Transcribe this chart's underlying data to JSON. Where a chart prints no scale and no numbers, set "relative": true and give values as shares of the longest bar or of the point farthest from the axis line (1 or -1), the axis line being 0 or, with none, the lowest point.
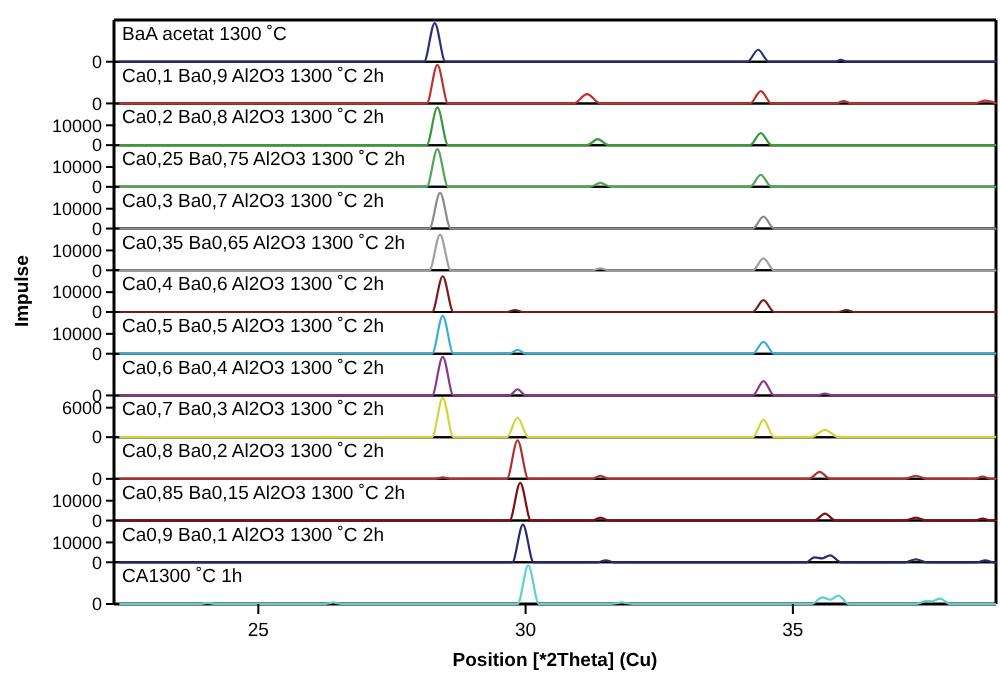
{
  "chart_data": [
    {
      "type": "line",
      "title": "BaA acetat 1300 ˚C",
      "relative": true,
      "annotations": [
        "0"
      ],
      "xlim": [
        22.3,
        38.8
      ],
      "tick_labels": "y",
      "series": [
        {
          "color": "#2b2f7a",
          "x": [
            22.4,
            28.1,
            28.3,
            28.5,
            34.15,
            34.35,
            34.55,
            35.8,
            35.9,
            36.0,
            38.8
          ],
          "values": [
            0,
            0,
            1,
            0,
            0,
            0.31,
            0,
            0,
            0.05,
            0,
            0
          ]
        }
      ]
    },
    {
      "type": "line",
      "title": "Ca0,1 Ba0,9 Al2O3 1300 ˚C 2h",
      "relative": true,
      "annotations": [
        "0"
      ],
      "xlim": [
        22.3,
        38.8
      ],
      "tick_labels": "y",
      "series": [
        {
          "color": "#c0302f",
          "x": [
            22.4,
            28.15,
            28.35,
            28.55,
            30.9,
            31.15,
            31.4,
            34.2,
            34.4,
            34.6,
            35.8,
            35.95,
            36.1,
            38.4,
            38.6,
            38.8
          ],
          "values": [
            0,
            0,
            1,
            0,
            0,
            0.24,
            0,
            0,
            0.32,
            0,
            0,
            0.06,
            0,
            0,
            0.07,
            0
          ]
        }
      ]
    },
    {
      "type": "line",
      "title": "Ca0,2 Ba0,8 Al2O3 1300 ˚C 2h",
      "xlim": [
        22.3,
        38.8
      ],
      "ylim": [
        0,
        21000
      ],
      "yticks": [
        0,
        10000
      ],
      "tick_labels": "y",
      "series": [
        {
          "color": "#3a9a3a",
          "x": [
            22.4,
            28.15,
            28.35,
            28.55,
            31.15,
            31.35,
            31.55,
            34.2,
            34.4,
            34.6,
            38.8
          ],
          "values": [
            0,
            0,
            19000,
            0,
            0,
            3000,
            0,
            0,
            6000,
            0,
            0
          ]
        }
      ]
    },
    {
      "type": "line",
      "title": "Ca0,25 Ba0,75 Al2O3 1300 ˚C 2h",
      "xlim": [
        22.3,
        38.8
      ],
      "ylim": [
        0,
        21000
      ],
      "yticks": [
        0,
        10000
      ],
      "tick_labels": "y",
      "series": [
        {
          "color": "#52a852",
          "x": [
            22.4,
            28.15,
            28.35,
            28.55,
            31.2,
            31.4,
            31.6,
            34.2,
            34.4,
            34.6,
            38.8
          ],
          "values": [
            0,
            0,
            19000,
            0,
            0,
            2000,
            0,
            0,
            6000,
            0,
            0
          ]
        }
      ]
    },
    {
      "type": "line",
      "title": "Ca0,3 Ba0,7 Al2O3 1300 ˚C 2h",
      "xlim": [
        22.3,
        38.8
      ],
      "ylim": [
        0,
        21000
      ],
      "yticks": [
        0,
        10000
      ],
      "tick_labels": "y",
      "series": [
        {
          "color": "#8c8c8c",
          "x": [
            22.4,
            28.2,
            28.4,
            28.6,
            34.25,
            34.45,
            34.65,
            38.8
          ],
          "values": [
            0,
            0,
            18000,
            0,
            0,
            6000,
            0,
            0
          ]
        }
      ]
    },
    {
      "type": "line",
      "title": "Ca0,35 Ba0,65 Al2O3 1300 ˚C 2h",
      "xlim": [
        22.3,
        38.8
      ],
      "ylim": [
        0,
        21000
      ],
      "yticks": [
        0,
        10000
      ],
      "tick_labels": "y",
      "series": [
        {
          "color": "#a0a0a0",
          "x": [
            22.4,
            28.2,
            28.4,
            28.6,
            31.25,
            31.4,
            31.55,
            34.25,
            34.45,
            34.65,
            38.8
          ],
          "values": [
            0,
            0,
            18000,
            0,
            0,
            1000,
            0,
            0,
            6000,
            0,
            0
          ]
        }
      ]
    },
    {
      "type": "line",
      "title": "Ca0,4 Ba0,6 Al2O3 1300 ˚C 2h",
      "ylabel": "Impulse",
      "xlim": [
        22.3,
        38.8
      ],
      "ylim": [
        0,
        21000
      ],
      "yticks": [
        0,
        10000
      ],
      "tick_labels": "y",
      "series": [
        {
          "color": "#7a1a1a",
          "x": [
            22.4,
            28.25,
            28.45,
            28.65,
            29.65,
            29.8,
            29.95,
            34.25,
            34.45,
            34.65,
            35.85,
            36.0,
            36.15,
            38.8
          ],
          "values": [
            0,
            0,
            18000,
            0,
            0,
            1000,
            0,
            0,
            6000,
            0,
            0,
            1000,
            0,
            0
          ]
        }
      ]
    },
    {
      "type": "line",
      "title": "Ca0,5 Ba0,5 Al2O3 1300 ˚C 2h",
      "xlim": [
        22.3,
        38.8
      ],
      "ylim": [
        0,
        21000
      ],
      "yticks": [
        0,
        10000
      ],
      "tick_labels": "y",
      "series": [
        {
          "color": "#3ab0d0",
          "x": [
            22.4,
            28.25,
            28.45,
            28.65,
            29.7,
            29.85,
            30.0,
            34.25,
            34.45,
            34.65,
            38.8
          ],
          "values": [
            0,
            0,
            19000,
            0,
            0,
            2000,
            0,
            0,
            6000,
            0,
            0
          ]
        }
      ]
    },
    {
      "type": "line",
      "title": "Ca0,6 Ba0,4 Al2O3 1300 ˚C 2h",
      "relative": true,
      "annotations": [
        "0"
      ],
      "xlim": [
        22.3,
        38.8
      ],
      "tick_labels": "y",
      "series": [
        {
          "color": "#8a3a8a",
          "x": [
            22.4,
            28.25,
            28.45,
            28.65,
            29.7,
            29.85,
            30.0,
            34.25,
            34.45,
            34.65,
            35.45,
            35.6,
            35.75,
            38.8
          ],
          "values": [
            0,
            0,
            1,
            0,
            0,
            0.16,
            0,
            0,
            0.37,
            0,
            0,
            0.05,
            0,
            0
          ]
        }
      ]
    },
    {
      "type": "line",
      "title": "Ca0,7 Ba0,3 Al2O3 1300 ˚C 2h",
      "xlim": [
        22.3,
        38.8
      ],
      "ylim": [
        0,
        8500
      ],
      "yticks": [
        0,
        6000
      ],
      "tick_labels": "y",
      "series": [
        {
          "color": "#d4d43a",
          "x": [
            22.4,
            28.25,
            28.45,
            28.65,
            29.65,
            29.85,
            30.05,
            34.25,
            34.45,
            34.65,
            35.35,
            35.6,
            35.85,
            38.8
          ],
          "values": [
            0,
            0,
            8000,
            0,
            0,
            4000,
            0,
            0,
            3500,
            0,
            0,
            1500,
            0,
            0
          ]
        }
      ]
    },
    {
      "type": "line",
      "title": "Ca0,8 Ba0,2 Al2O3 1300 ˚C 2h",
      "relative": true,
      "annotations": [
        "0"
      ],
      "xlim": [
        22.3,
        38.8
      ],
      "tick_labels": "y",
      "series": [
        {
          "color": "#b03030",
          "x": [
            22.4,
            28.3,
            28.45,
            28.6,
            29.65,
            29.85,
            30.05,
            31.25,
            31.4,
            31.55,
            35.3,
            35.5,
            35.7,
            37.1,
            37.3,
            37.5,
            38.4,
            38.55,
            38.7,
            38.8
          ],
          "values": [
            0,
            0,
            0.04,
            0,
            0,
            1,
            0,
            0,
            0.08,
            0,
            0,
            0.18,
            0,
            0,
            0.08,
            0,
            0,
            0.06,
            0,
            0
          ]
        }
      ]
    },
    {
      "type": "line",
      "title": "Ca0,85 Ba0,15 Al2O3 1300 ˚C 2h",
      "xlim": [
        22.3,
        38.8
      ],
      "ylim": [
        0,
        21000
      ],
      "yticks": [
        0,
        10000
      ],
      "tick_labels": "y",
      "series": [
        {
          "color": "#801010",
          "x": [
            22.4,
            29.7,
            29.9,
            30.1,
            31.25,
            31.4,
            31.55,
            35.4,
            35.6,
            35.8,
            37.1,
            37.3,
            37.5,
            38.4,
            38.55,
            38.7,
            38.8
          ],
          "values": [
            0,
            0,
            19000,
            0,
            0,
            1500,
            0,
            0,
            3500,
            0,
            0,
            1500,
            0,
            0,
            1000,
            0,
            0
          ]
        }
      ]
    },
    {
      "type": "line",
      "title": "Ca0,9 Ba0,1 Al2O3 1300 ˚C 2h",
      "xlim": [
        22.3,
        38.8
      ],
      "ylim": [
        0,
        21000
      ],
      "yticks": [
        0,
        10000
      ],
      "tick_labels": "y",
      "series": [
        {
          "color": "#2a2a70",
          "x": [
            22.4,
            29.75,
            29.95,
            30.15,
            31.35,
            31.5,
            31.65,
            35.25,
            35.4,
            35.55,
            35.7,
            35.9,
            37.1,
            37.3,
            37.5,
            38.45,
            38.6,
            38.75,
            38.8
          ],
          "values": [
            0,
            0,
            19000,
            0,
            0,
            1000,
            0,
            0,
            2500,
            2000,
            3500,
            0,
            0,
            1500,
            0,
            0,
            1000,
            0,
            0
          ]
        }
      ]
    },
    {
      "type": "line",
      "title": "CA1300 ˚C 1h",
      "relative": true,
      "annotations": [
        "0"
      ],
      "xlabel": "Position [*2Theta] (Cu)",
      "xlim": [
        22.3,
        38.8
      ],
      "xticks": [
        25,
        30,
        35
      ],
      "series": [
        {
          "color": "#5ad0d0",
          "x": [
            22.4,
            23.9,
            24.05,
            24.2,
            26.25,
            26.4,
            26.55,
            29.85,
            30.05,
            30.25,
            31.6,
            31.8,
            32.0,
            35.35,
            35.55,
            35.7,
            35.85,
            36.05,
            37.3,
            37.5,
            37.6,
            37.75,
            37.95,
            38.8
          ],
          "values": [
            0,
            0,
            0.03,
            0,
            0,
            0.04,
            0,
            0,
            1,
            0,
            0,
            0.04,
            0,
            0,
            0.17,
            0.11,
            0.22,
            0,
            0,
            0.08,
            0.07,
            0.14,
            0,
            0
          ]
        }
      ]
    }
  ]
}
